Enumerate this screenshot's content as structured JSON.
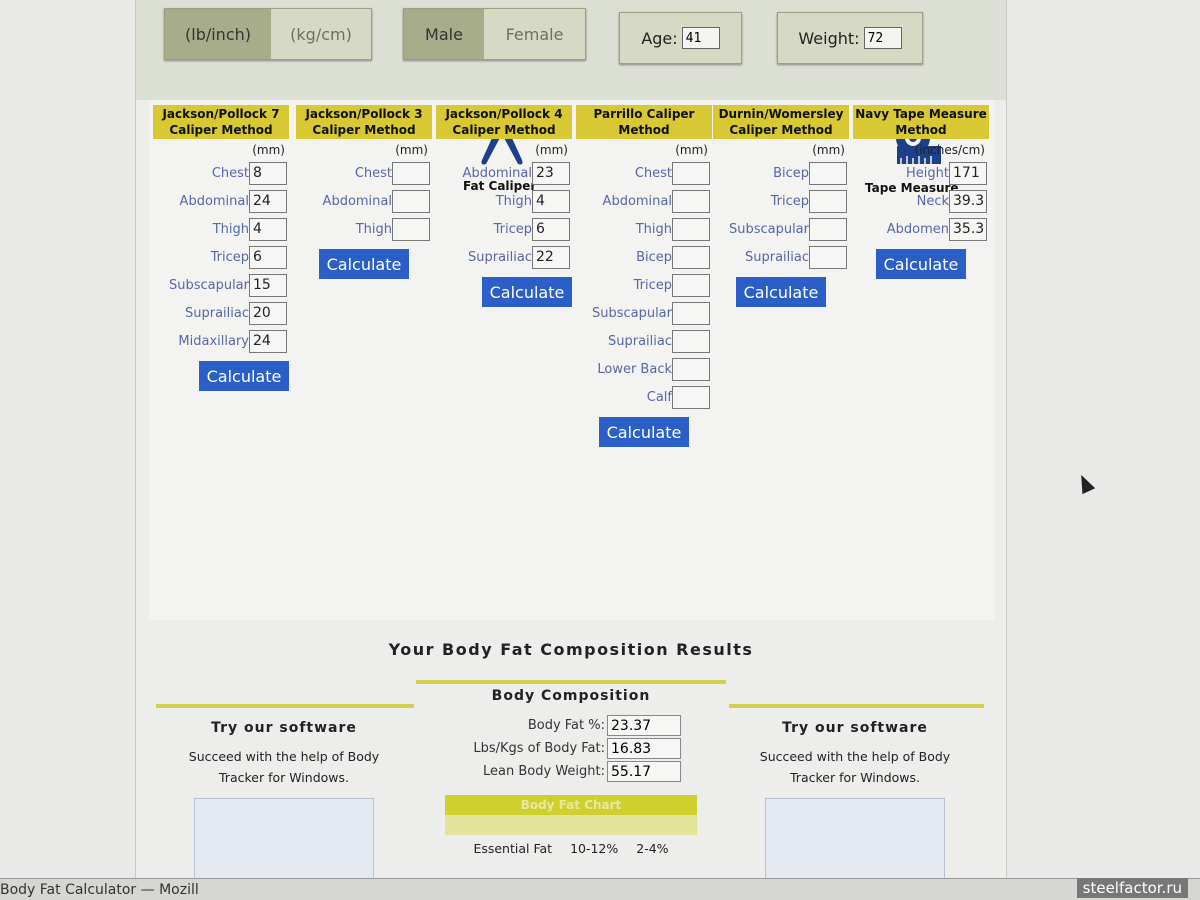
{
  "units": {
    "options": [
      "(lb/inch)",
      "(kg/cm)"
    ],
    "selected": "(lb/inch)"
  },
  "gender": {
    "options": [
      "Male",
      "Female"
    ],
    "selected": "Male"
  },
  "age": {
    "label": "Age:",
    "value": "41"
  },
  "weight": {
    "label": "Weight:",
    "value": "72"
  },
  "icons": {
    "caliper_label": "Fat Caliper",
    "tape_label": "Tape Measure"
  },
  "methods": [
    {
      "title": "Jackson/Pollock 7 Caliper Method",
      "unit": "(mm)",
      "button": "Calculate",
      "fields": [
        {
          "label": "Chest",
          "value": "8"
        },
        {
          "label": "Abdominal",
          "value": "24"
        },
        {
          "label": "Thigh",
          "value": "4"
        },
        {
          "label": "Tricep",
          "value": "6"
        },
        {
          "label": "Subscapular",
          "value": "15"
        },
        {
          "label": "Suprailiac",
          "value": "20"
        },
        {
          "label": "Midaxillary",
          "value": "24"
        }
      ]
    },
    {
      "title": "Jackson/Pollock 3 Caliper Method",
      "unit": "(mm)",
      "button": "Calculate",
      "fields": [
        {
          "label": "Chest",
          "value": ""
        },
        {
          "label": "Abdominal",
          "value": ""
        },
        {
          "label": "Thigh",
          "value": ""
        }
      ]
    },
    {
      "title": "Jackson/Pollock 4 Caliper Method",
      "unit": "(mm)",
      "button": "Calculate",
      "fields": [
        {
          "label": "Abdominal",
          "value": "23"
        },
        {
          "label": "Thigh",
          "value": "4"
        },
        {
          "label": "Tricep",
          "value": "6"
        },
        {
          "label": "Suprailiac",
          "value": "22"
        }
      ]
    },
    {
      "title": "Parrillo Caliper Method",
      "unit": "(mm)",
      "button": "Calculate",
      "fields": [
        {
          "label": "Chest",
          "value": ""
        },
        {
          "label": "Abdominal",
          "value": ""
        },
        {
          "label": "Thigh",
          "value": ""
        },
        {
          "label": "Bicep",
          "value": ""
        },
        {
          "label": "Tricep",
          "value": ""
        },
        {
          "label": "Subscapular",
          "value": ""
        },
        {
          "label": "Suprailiac",
          "value": ""
        },
        {
          "label": "Lower Back",
          "value": ""
        },
        {
          "label": "Calf",
          "value": ""
        }
      ]
    },
    {
      "title": "Durnin/Womersley Caliper Method",
      "unit": "(mm)",
      "button": "Calculate",
      "fields": [
        {
          "label": "Bicep",
          "value": ""
        },
        {
          "label": "Tricep",
          "value": ""
        },
        {
          "label": "Subscapular",
          "value": ""
        },
        {
          "label": "Suprailiac",
          "value": ""
        }
      ]
    },
    {
      "title": "Navy Tape Measure Method",
      "unit": "(inches/cm)",
      "button": "Calculate",
      "fields": [
        {
          "label": "Height",
          "value": "171"
        },
        {
          "label": "Neck",
          "value": "39.3"
        },
        {
          "label": "Abdomen",
          "value": "35.3"
        }
      ]
    }
  ],
  "results": {
    "title": "Your Body Fat Composition Results",
    "composition_title": "Body Composition",
    "rows": [
      {
        "label": "Body Fat %:",
        "value": "23.37"
      },
      {
        "label": "Lbs/Kgs of Body Fat:",
        "value": "16.83"
      },
      {
        "label": "Lean Body Weight:",
        "value": "55.17"
      }
    ],
    "chart_title": "Body Fat Chart",
    "essential": {
      "label": "Essential Fat",
      "women": "10-12%",
      "men": "2-4%"
    },
    "promo": {
      "title": "Try our software",
      "text": "Succeed with the help of Body Tracker for Windows."
    }
  },
  "taskbar": {
    "window_title": "Body Fat Calculator — Mozill"
  },
  "watermark": "steelfactor.ru",
  "colors": {
    "header_yellow": "#d8c834",
    "button_blue": "#2b5fc7",
    "label_blue": "#5866a6"
  }
}
